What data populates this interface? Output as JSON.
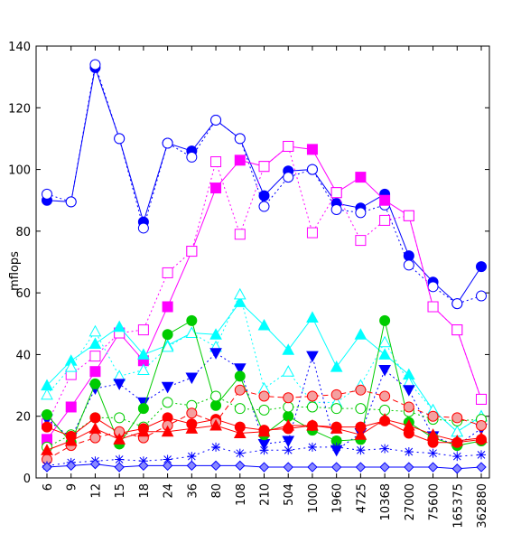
{
  "chart_data": {
    "type": "line",
    "title": "",
    "xlabel": "",
    "ylabel": "mflops",
    "ylim": [
      0,
      140
    ],
    "yticks": [
      0,
      20,
      40,
      60,
      80,
      100,
      120,
      140
    ],
    "grid": false,
    "legend": "none",
    "categories": [
      "6",
      "9",
      "12",
      "15",
      "18",
      "24",
      "36",
      "80",
      "108",
      "210",
      "504",
      "1000",
      "1960",
      "4725",
      "10368",
      "27000",
      "75600",
      "165375",
      "362880"
    ],
    "series": [
      {
        "color": "#0000ff",
        "dash": "",
        "marker": "circle",
        "filled": true,
        "values": [
          90,
          89.5,
          133,
          110,
          83,
          108.5,
          106,
          116,
          110,
          91.5,
          99.5,
          100,
          89,
          87.5,
          92,
          72,
          63.5,
          56.5,
          68.5
        ]
      },
      {
        "color": "#0000ff",
        "dash": "2,3",
        "marker": "circle",
        "filled": false,
        "values": [
          92,
          89.5,
          134,
          110,
          81,
          108.5,
          104,
          116,
          110,
          88,
          97.5,
          100,
          87,
          86,
          88.5,
          69,
          62,
          56.5,
          59
        ]
      },
      {
        "color": "#ff00ff",
        "dash": "",
        "marker": "square",
        "filled": true,
        "values": [
          12.5,
          23,
          34.5,
          47,
          38,
          55.5,
          73.5,
          94,
          103,
          101,
          107.5,
          106.5,
          92.5,
          97.5,
          90,
          85,
          55.5,
          48,
          25.5
        ]
      },
      {
        "color": "#ff00ff",
        "dash": "2,3",
        "marker": "square",
        "filled": false,
        "values": [
          17.5,
          33.5,
          39.5,
          47,
          48,
          66.5,
          73.5,
          102.5,
          79,
          101,
          107.5,
          79.5,
          92.5,
          77,
          83.5,
          85,
          55.5,
          48,
          25.5
        ]
      },
      {
        "color": "#00ffff",
        "dash": "",
        "marker": "triangle",
        "filled": true,
        "values": [
          30,
          38,
          43.5,
          49,
          40,
          43,
          47,
          46.5,
          57,
          49.5,
          41.5,
          52,
          36,
          46.5,
          40,
          33.5,
          22,
          15,
          20
        ]
      },
      {
        "color": "#00ffff",
        "dash": "2,3",
        "marker": "triangle",
        "filled": false,
        "values": [
          27,
          36,
          47.5,
          33,
          35,
          42.5,
          47,
          42.5,
          59.5,
          29,
          34.5,
          24.5,
          24.5,
          30,
          44,
          31,
          22,
          15,
          20
        ]
      },
      {
        "color": "#0000ff",
        "dash": "2,3",
        "marker": "triangle-down",
        "filled": true,
        "values": [
          19,
          13,
          29,
          30.5,
          24.5,
          29.5,
          32.5,
          40.5,
          35.5,
          11,
          12,
          39.5,
          9,
          14.5,
          35,
          28.5,
          13.5,
          10.5,
          16
        ]
      },
      {
        "color": "#00cc00",
        "dash": "",
        "marker": "circle",
        "filled": true,
        "values": [
          20.5,
          11.5,
          30.5,
          11,
          22.5,
          46.5,
          51,
          23.5,
          33,
          14,
          20,
          15.5,
          12,
          12.5,
          51,
          18,
          13,
          10.5,
          12
        ]
      },
      {
        "color": "#00cc00",
        "dash": "2,3",
        "marker": "circle",
        "filled": false,
        "values": [
          10,
          14,
          19.5,
          19.5,
          16.5,
          24.5,
          23.5,
          26.5,
          22.5,
          22,
          23,
          23,
          22.5,
          22.5,
          22,
          21.5,
          19,
          18.5,
          19
        ]
      },
      {
        "color": "#ff0000",
        "dash": "",
        "marker": "circle",
        "filled": true,
        "values": [
          16.5,
          13.5,
          19.5,
          14.5,
          16,
          19.5,
          17.5,
          19,
          16.5,
          15.5,
          16,
          17,
          16.5,
          16.5,
          18.5,
          14.5,
          11.5,
          11.5,
          12.5
        ]
      },
      {
        "color": "#ff0000",
        "dash": "6,4",
        "marker": "circle",
        "filled": false,
        "fill": "#f4a0a0",
        "values": [
          6,
          10.5,
          13,
          15,
          13,
          17,
          21,
          18,
          28.5,
          26.5,
          26,
          26.5,
          27,
          28.5,
          26.5,
          23,
          20,
          19.5,
          17
        ]
      },
      {
        "color": "#ff0000",
        "dash": "",
        "marker": "triangle",
        "filled": true,
        "values": [
          9,
          12,
          16,
          12.5,
          15,
          15,
          16,
          17,
          14.5,
          15,
          17,
          17,
          16,
          14,
          19,
          17,
          14,
          12,
          13
        ]
      },
      {
        "color": "#0000ff",
        "dash": "2,4",
        "marker": "asterisk",
        "filled": false,
        "values": [
          4,
          5,
          5.5,
          6,
          5.5,
          6,
          7,
          10,
          8,
          9,
          9,
          10,
          10,
          9,
          9.5,
          8.5,
          8,
          7,
          7.5
        ]
      },
      {
        "color": "#0000ff",
        "dash": "",
        "marker": "diamond",
        "filled": true,
        "fill": "#8888ff",
        "values": [
          3.5,
          4,
          4.5,
          3.5,
          4,
          4,
          4,
          4,
          4,
          3.5,
          3.5,
          3.5,
          3.5,
          3.5,
          3.5,
          3.5,
          3.5,
          3,
          3.5
        ]
      }
    ]
  }
}
